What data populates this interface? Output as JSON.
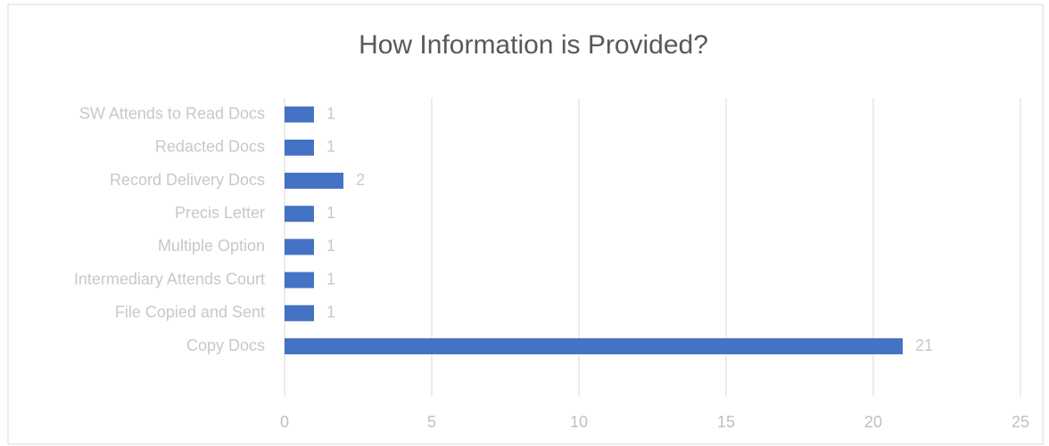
{
  "chart_data": {
    "type": "bar",
    "orientation": "horizontal",
    "title": "How Information is Provided?",
    "categories": [
      "SW Attends to Read Docs",
      "Redacted Docs",
      "Record Delivery Docs",
      "Precis Letter",
      "Multiple Option",
      "Intermediary Attends Court",
      "File Copied and Sent",
      "Copy Docs"
    ],
    "values": [
      1,
      1,
      2,
      1,
      1,
      1,
      1,
      21
    ],
    "color": "#4472c4",
    "xlim": [
      0,
      25
    ],
    "xticks": [
      0,
      5,
      10,
      15,
      20,
      25
    ],
    "grid": true
  }
}
